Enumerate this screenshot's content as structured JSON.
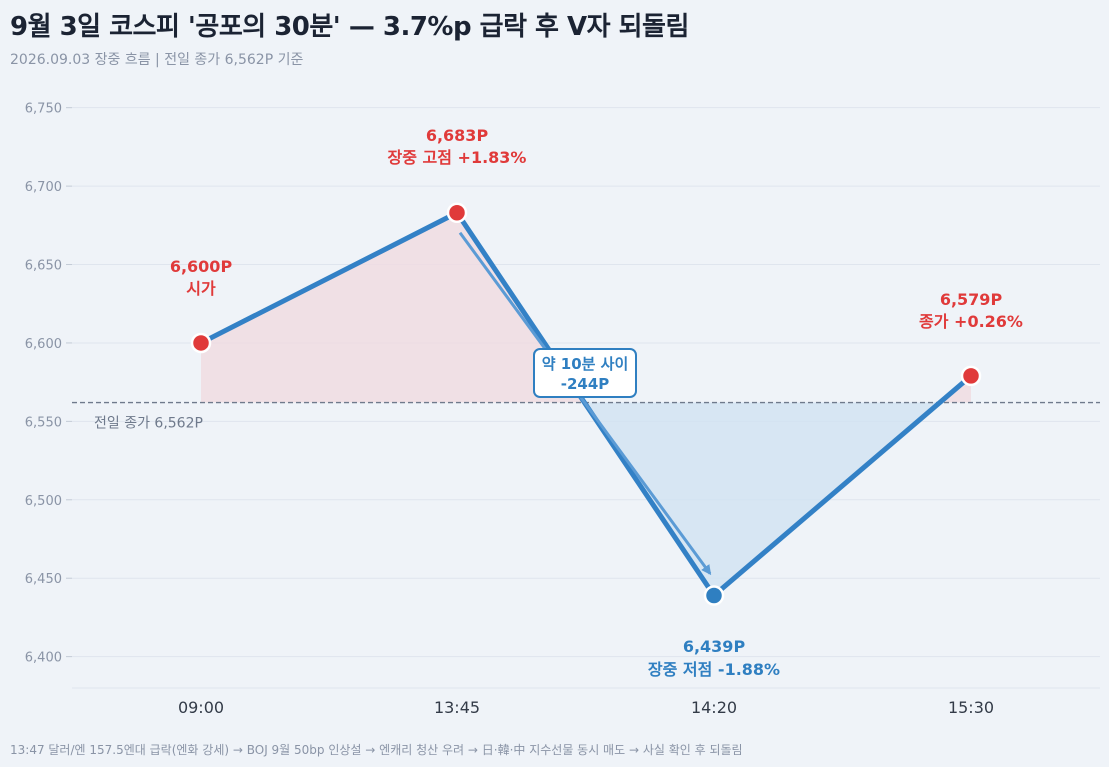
{
  "chart_data": {
    "type": "line",
    "title": "9월 3일 코스피 '공포의 30분' — 3.7%p 급락 후 V자 되돌림",
    "subtitle": "2026.09.03 장중 흐름  |  전일 종가 6,562P 기준",
    "footnote": "13:47 달러/엔 157.5엔대 급락(엔화 강세) → BOJ 9월 50bp 인상설 → 엔캐리 청산 우려 → 日·韓·中 지수선물 동시 매도 → 사실 확인 후 되돌림",
    "categories": [
      "09:00",
      "13:45",
      "14:20",
      "15:30"
    ],
    "values": [
      6600,
      6683,
      6439,
      6579
    ],
    "ylim": [
      6380,
      6760
    ],
    "yticks": [
      6400,
      6450,
      6500,
      6550,
      6600,
      6650,
      6700,
      6750
    ],
    "ytick_labels": [
      "6,400",
      "6,450",
      "6,500",
      "6,550",
      "6,600",
      "6,650",
      "6,700",
      "6,750"
    ],
    "grid": true,
    "reference_line": {
      "value": 6562,
      "label": "전일 종가 6,562P"
    },
    "point_labels": [
      {
        "value_text": "6,600P",
        "desc": "시가",
        "color": "#e03a3a"
      },
      {
        "value_text": "6,683P",
        "desc": "장중 고점 +1.83%",
        "color": "#e03a3a"
      },
      {
        "value_text": "6,439P",
        "desc": "장중 저점 -1.88%",
        "color": "#2f7fc1"
      },
      {
        "value_text": "6,579P",
        "desc": "종가 +0.26%",
        "color": "#e03a3a"
      }
    ],
    "callout": {
      "line1": "약 10분 사이",
      "line2": "-244P",
      "from_index": 1,
      "to_index": 2
    },
    "colors": {
      "line": "#3381c6",
      "up_marker": "#e03a3a",
      "down_marker": "#2f7fc1",
      "up_fill": "#f0dce2",
      "down_fill": "#cfe1f1",
      "reference": "#6f7a8c",
      "grid": "#dfe5ee"
    }
  }
}
